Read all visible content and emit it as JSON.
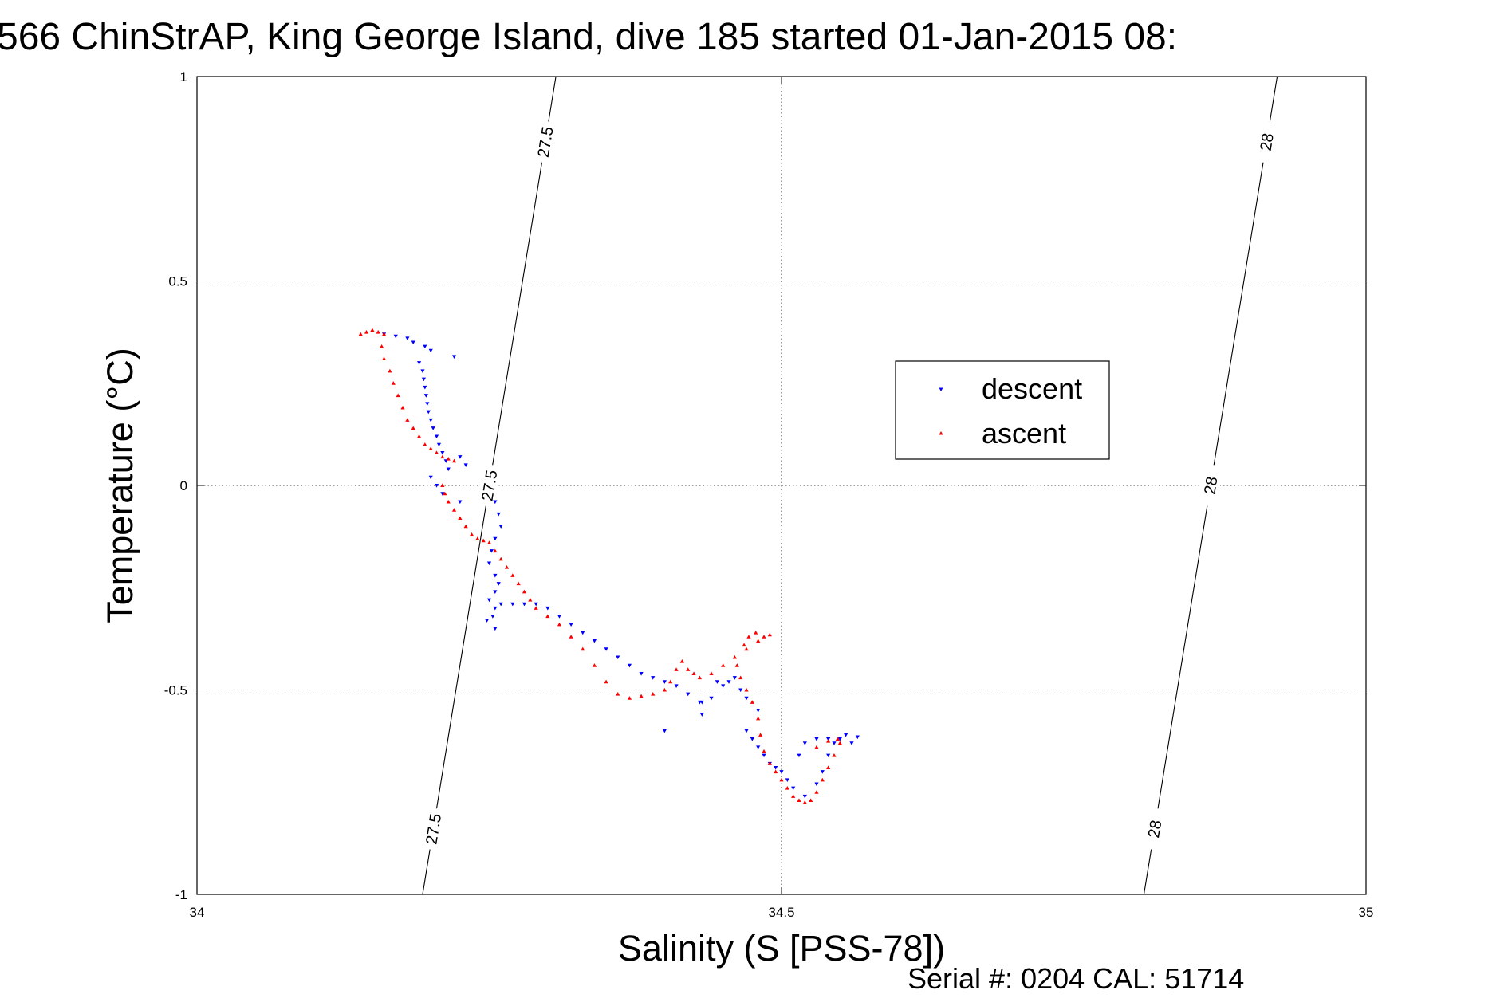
{
  "chart_data": {
    "type": "scatter",
    "title": "566 ChinStrAP, King George Island, dive 185 started 01-Jan-2015 08:",
    "xlabel": "Salinity (S [PSS-78])",
    "ylabel": "Temperature (°C)",
    "xlim": [
      34,
      35
    ],
    "ylim": [
      -1,
      1
    ],
    "x_ticks": [
      34,
      34.5,
      35
    ],
    "x_tick_labels": [
      "34",
      "34.5",
      "35"
    ],
    "y_ticks": [
      1,
      0.5,
      0,
      -0.5,
      -1
    ],
    "y_tick_labels": [
      "1",
      "0.5",
      "0",
      "-0.5",
      "-1"
    ],
    "grid": true,
    "legend_position": "right",
    "isopycnals": [
      {
        "value": 27.5,
        "line": [
          [
            34.193,
            -1
          ],
          [
            34.307,
            1
          ]
        ],
        "labels": [
          "27.5",
          "27.5",
          "27.5"
        ]
      },
      {
        "value": 28,
        "line": [
          [
            34.81,
            -1
          ],
          [
            34.924,
            1
          ]
        ],
        "labels": [
          "28",
          "28",
          "28"
        ]
      }
    ],
    "series": [
      {
        "name": "descent",
        "marker": "triangle-down",
        "color": "#0000ff",
        "points": [
          [
            34.16,
            0.37
          ],
          [
            34.17,
            0.365
          ],
          [
            34.18,
            0.36
          ],
          [
            34.185,
            0.35
          ],
          [
            34.195,
            0.34
          ],
          [
            34.2,
            0.33
          ],
          [
            34.22,
            0.315
          ],
          [
            34.19,
            0.3
          ],
          [
            34.193,
            0.28
          ],
          [
            34.194,
            0.26
          ],
          [
            34.195,
            0.24
          ],
          [
            34.196,
            0.22
          ],
          [
            34.197,
            0.2
          ],
          [
            34.198,
            0.18
          ],
          [
            34.2,
            0.16
          ],
          [
            34.202,
            0.14
          ],
          [
            34.205,
            0.12
          ],
          [
            34.207,
            0.1
          ],
          [
            34.21,
            0.08
          ],
          [
            34.213,
            0.06
          ],
          [
            34.2,
            0.02
          ],
          [
            34.205,
            0.0
          ],
          [
            34.21,
            -0.02
          ],
          [
            34.215,
            0.04
          ],
          [
            34.225,
            0.07
          ],
          [
            34.23,
            0.05
          ],
          [
            34.225,
            -0.04
          ],
          [
            34.255,
            -0.04
          ],
          [
            34.258,
            -0.07
          ],
          [
            34.26,
            -0.1
          ],
          [
            34.255,
            -0.13
          ],
          [
            34.252,
            -0.16
          ],
          [
            34.25,
            -0.19
          ],
          [
            34.255,
            -0.22
          ],
          [
            34.258,
            -0.24
          ],
          [
            34.255,
            -0.26
          ],
          [
            34.25,
            -0.28
          ],
          [
            34.255,
            -0.3
          ],
          [
            34.253,
            -0.32
          ],
          [
            34.248,
            -0.33
          ],
          [
            34.255,
            -0.35
          ],
          [
            34.26,
            -0.29
          ],
          [
            34.27,
            -0.29
          ],
          [
            34.28,
            -0.29
          ],
          [
            34.29,
            -0.29
          ],
          [
            34.3,
            -0.3
          ],
          [
            34.31,
            -0.32
          ],
          [
            34.32,
            -0.34
          ],
          [
            34.33,
            -0.36
          ],
          [
            34.34,
            -0.38
          ],
          [
            34.35,
            -0.4
          ],
          [
            34.36,
            -0.42
          ],
          [
            34.37,
            -0.44
          ],
          [
            34.38,
            -0.46
          ],
          [
            34.39,
            -0.47
          ],
          [
            34.4,
            -0.48
          ],
          [
            34.41,
            -0.49
          ],
          [
            34.42,
            -0.51
          ],
          [
            34.43,
            -0.53
          ],
          [
            34.44,
            -0.52
          ],
          [
            34.445,
            -0.48
          ],
          [
            34.45,
            -0.49
          ],
          [
            34.455,
            -0.48
          ],
          [
            34.46,
            -0.47
          ],
          [
            34.465,
            -0.5
          ],
          [
            34.47,
            -0.52
          ],
          [
            34.48,
            -0.55
          ],
          [
            34.432,
            -0.56
          ],
          [
            34.432,
            -0.53
          ],
          [
            34.4,
            -0.6
          ],
          [
            34.47,
            -0.6
          ],
          [
            34.475,
            -0.62
          ],
          [
            34.48,
            -0.64
          ],
          [
            34.485,
            -0.66
          ],
          [
            34.49,
            -0.68
          ],
          [
            34.495,
            -0.69
          ],
          [
            34.5,
            -0.7
          ],
          [
            34.505,
            -0.72
          ],
          [
            34.51,
            -0.74
          ],
          [
            34.52,
            -0.76
          ],
          [
            34.53,
            -0.73
          ],
          [
            34.535,
            -0.7
          ],
          [
            34.54,
            -0.66
          ],
          [
            34.545,
            -0.63
          ],
          [
            34.55,
            -0.62
          ],
          [
            34.56,
            -0.63
          ],
          [
            34.565,
            -0.615
          ],
          [
            34.555,
            -0.61
          ],
          [
            34.54,
            -0.62
          ],
          [
            34.53,
            -0.62
          ],
          [
            34.52,
            -0.63
          ],
          [
            34.515,
            -0.66
          ]
        ]
      },
      {
        "name": "ascent",
        "marker": "triangle-up",
        "color": "#ff0000",
        "points": [
          [
            34.14,
            0.37
          ],
          [
            34.145,
            0.375
          ],
          [
            34.15,
            0.38
          ],
          [
            34.155,
            0.375
          ],
          [
            34.16,
            0.37
          ],
          [
            34.158,
            0.34
          ],
          [
            34.16,
            0.31
          ],
          [
            34.165,
            0.28
          ],
          [
            34.168,
            0.25
          ],
          [
            34.172,
            0.22
          ],
          [
            34.176,
            0.19
          ],
          [
            34.18,
            0.16
          ],
          [
            34.185,
            0.14
          ],
          [
            34.19,
            0.12
          ],
          [
            34.195,
            0.1
          ],
          [
            34.2,
            0.09
          ],
          [
            34.205,
            0.08
          ],
          [
            34.21,
            0.07
          ],
          [
            34.215,
            0.065
          ],
          [
            34.22,
            0.06
          ],
          [
            34.21,
            0.0
          ],
          [
            34.212,
            -0.02
          ],
          [
            34.215,
            -0.04
          ],
          [
            34.22,
            -0.06
          ],
          [
            34.225,
            -0.08
          ],
          [
            34.23,
            -0.1
          ],
          [
            34.235,
            -0.12
          ],
          [
            34.24,
            -0.13
          ],
          [
            34.245,
            -0.135
          ],
          [
            34.25,
            -0.14
          ],
          [
            34.255,
            -0.16
          ],
          [
            34.26,
            -0.18
          ],
          [
            34.265,
            -0.2
          ],
          [
            34.27,
            -0.22
          ],
          [
            34.275,
            -0.24
          ],
          [
            34.28,
            -0.26
          ],
          [
            34.285,
            -0.28
          ],
          [
            34.29,
            -0.3
          ],
          [
            34.3,
            -0.32
          ],
          [
            34.31,
            -0.34
          ],
          [
            34.32,
            -0.37
          ],
          [
            34.33,
            -0.4
          ],
          [
            34.34,
            -0.44
          ],
          [
            34.35,
            -0.48
          ],
          [
            34.36,
            -0.51
          ],
          [
            34.37,
            -0.52
          ],
          [
            34.38,
            -0.515
          ],
          [
            34.39,
            -0.51
          ],
          [
            34.4,
            -0.5
          ],
          [
            34.405,
            -0.48
          ],
          [
            34.41,
            -0.45
          ],
          [
            34.415,
            -0.43
          ],
          [
            34.42,
            -0.45
          ],
          [
            34.425,
            -0.46
          ],
          [
            34.43,
            -0.47
          ],
          [
            34.44,
            -0.46
          ],
          [
            34.45,
            -0.44
          ],
          [
            34.46,
            -0.42
          ],
          [
            34.47,
            -0.4
          ],
          [
            34.48,
            -0.38
          ],
          [
            34.485,
            -0.37
          ],
          [
            34.49,
            -0.365
          ],
          [
            34.478,
            -0.36
          ],
          [
            34.472,
            -0.37
          ],
          [
            34.468,
            -0.39
          ],
          [
            34.462,
            -0.44
          ],
          [
            34.465,
            -0.47
          ],
          [
            34.47,
            -0.5
          ],
          [
            34.475,
            -0.53
          ],
          [
            34.48,
            -0.57
          ],
          [
            34.482,
            -0.61
          ],
          [
            34.485,
            -0.65
          ],
          [
            34.49,
            -0.68
          ],
          [
            34.495,
            -0.7
          ],
          [
            34.5,
            -0.72
          ],
          [
            34.505,
            -0.74
          ],
          [
            34.51,
            -0.76
          ],
          [
            34.515,
            -0.77
          ],
          [
            34.52,
            -0.775
          ],
          [
            34.525,
            -0.77
          ],
          [
            34.53,
            -0.75
          ],
          [
            34.535,
            -0.72
          ],
          [
            34.54,
            -0.69
          ],
          [
            34.545,
            -0.66
          ],
          [
            34.55,
            -0.63
          ],
          [
            34.548,
            -0.62
          ],
          [
            34.54,
            -0.625
          ],
          [
            34.53,
            -0.64
          ]
        ]
      }
    ]
  },
  "footer": {
    "serial_text": "Serial #: 0204  CAL: 51714"
  }
}
